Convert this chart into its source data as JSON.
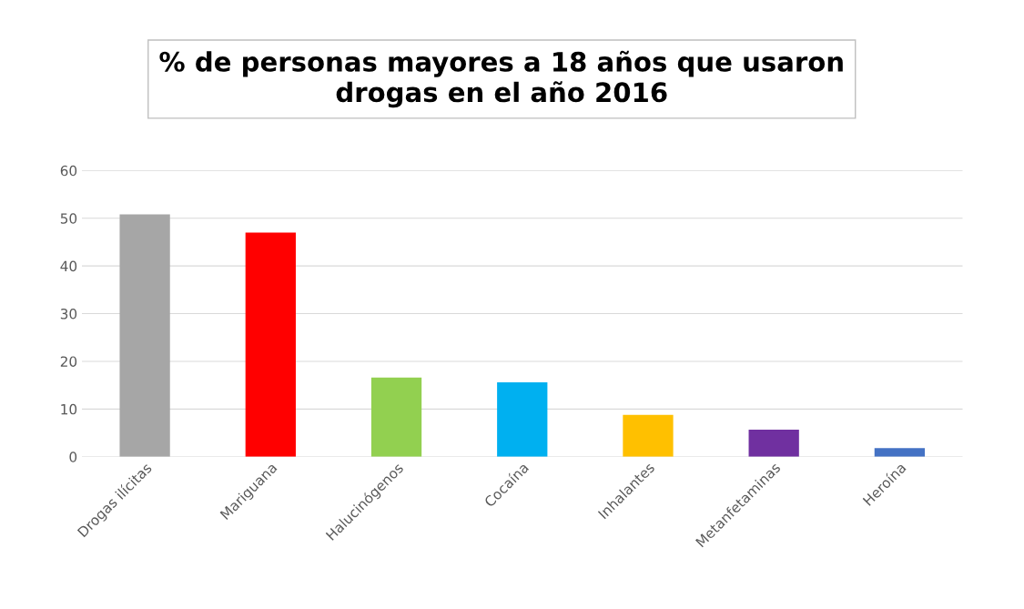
{
  "chart_data": {
    "type": "bar",
    "title": "% de personas mayores a 18 años que usaron\ndrogas en el año 2016",
    "categories": [
      "Drogas ilícitas",
      "Mariguana",
      "Halucinógenos",
      "Cocaína",
      "Inhalantes",
      "Metanfetaminas",
      "Heroína"
    ],
    "values": [
      50.8,
      47,
      16.6,
      15.6,
      8.8,
      5.7,
      1.8
    ],
    "colors": [
      "#a6a6a6",
      "#ff0000",
      "#92d050",
      "#00b0f0",
      "#ffc000",
      "#7030a0",
      "#4472c4"
    ],
    "ylim": [
      0,
      60
    ],
    "yticks": [
      0,
      10,
      20,
      30,
      40,
      50,
      60
    ],
    "grid": "y"
  }
}
